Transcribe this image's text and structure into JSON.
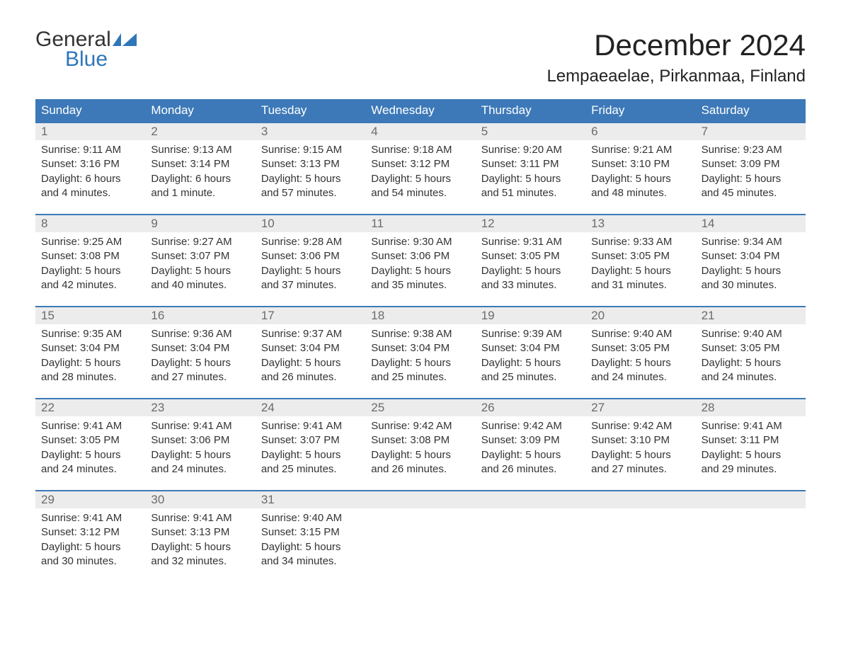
{
  "colors": {
    "header_bg": "#3d79b8",
    "header_text": "#ffffff",
    "daynum_bg": "#ececec",
    "daynum_text": "#6b6b6b",
    "body_text": "#333333",
    "week_border": "#3d79b8",
    "logo_blue": "#2f76b9",
    "page_bg": "#ffffff"
  },
  "typography": {
    "month_title_pt": 32,
    "location_pt": 18,
    "dow_pt": 13,
    "cell_pt": 11
  },
  "logo": {
    "text_top": "General",
    "text_bottom": "Blue"
  },
  "title": "December 2024",
  "location": "Lempaeaelae, Pirkanmaa, Finland",
  "dow": [
    "Sunday",
    "Monday",
    "Tuesday",
    "Wednesday",
    "Thursday",
    "Friday",
    "Saturday"
  ],
  "weeks": [
    {
      "nums": [
        "1",
        "2",
        "3",
        "4",
        "5",
        "6",
        "7"
      ],
      "cells": [
        {
          "l1": "Sunrise: 9:11 AM",
          "l2": "Sunset: 3:16 PM",
          "l3": "Daylight: 6 hours",
          "l4": "and 4 minutes."
        },
        {
          "l1": "Sunrise: 9:13 AM",
          "l2": "Sunset: 3:14 PM",
          "l3": "Daylight: 6 hours",
          "l4": "and 1 minute."
        },
        {
          "l1": "Sunrise: 9:15 AM",
          "l2": "Sunset: 3:13 PM",
          "l3": "Daylight: 5 hours",
          "l4": "and 57 minutes."
        },
        {
          "l1": "Sunrise: 9:18 AM",
          "l2": "Sunset: 3:12 PM",
          "l3": "Daylight: 5 hours",
          "l4": "and 54 minutes."
        },
        {
          "l1": "Sunrise: 9:20 AM",
          "l2": "Sunset: 3:11 PM",
          "l3": "Daylight: 5 hours",
          "l4": "and 51 minutes."
        },
        {
          "l1": "Sunrise: 9:21 AM",
          "l2": "Sunset: 3:10 PM",
          "l3": "Daylight: 5 hours",
          "l4": "and 48 minutes."
        },
        {
          "l1": "Sunrise: 9:23 AM",
          "l2": "Sunset: 3:09 PM",
          "l3": "Daylight: 5 hours",
          "l4": "and 45 minutes."
        }
      ]
    },
    {
      "nums": [
        "8",
        "9",
        "10",
        "11",
        "12",
        "13",
        "14"
      ],
      "cells": [
        {
          "l1": "Sunrise: 9:25 AM",
          "l2": "Sunset: 3:08 PM",
          "l3": "Daylight: 5 hours",
          "l4": "and 42 minutes."
        },
        {
          "l1": "Sunrise: 9:27 AM",
          "l2": "Sunset: 3:07 PM",
          "l3": "Daylight: 5 hours",
          "l4": "and 40 minutes."
        },
        {
          "l1": "Sunrise: 9:28 AM",
          "l2": "Sunset: 3:06 PM",
          "l3": "Daylight: 5 hours",
          "l4": "and 37 minutes."
        },
        {
          "l1": "Sunrise: 9:30 AM",
          "l2": "Sunset: 3:06 PM",
          "l3": "Daylight: 5 hours",
          "l4": "and 35 minutes."
        },
        {
          "l1": "Sunrise: 9:31 AM",
          "l2": "Sunset: 3:05 PM",
          "l3": "Daylight: 5 hours",
          "l4": "and 33 minutes."
        },
        {
          "l1": "Sunrise: 9:33 AM",
          "l2": "Sunset: 3:05 PM",
          "l3": "Daylight: 5 hours",
          "l4": "and 31 minutes."
        },
        {
          "l1": "Sunrise: 9:34 AM",
          "l2": "Sunset: 3:04 PM",
          "l3": "Daylight: 5 hours",
          "l4": "and 30 minutes."
        }
      ]
    },
    {
      "nums": [
        "15",
        "16",
        "17",
        "18",
        "19",
        "20",
        "21"
      ],
      "cells": [
        {
          "l1": "Sunrise: 9:35 AM",
          "l2": "Sunset: 3:04 PM",
          "l3": "Daylight: 5 hours",
          "l4": "and 28 minutes."
        },
        {
          "l1": "Sunrise: 9:36 AM",
          "l2": "Sunset: 3:04 PM",
          "l3": "Daylight: 5 hours",
          "l4": "and 27 minutes."
        },
        {
          "l1": "Sunrise: 9:37 AM",
          "l2": "Sunset: 3:04 PM",
          "l3": "Daylight: 5 hours",
          "l4": "and 26 minutes."
        },
        {
          "l1": "Sunrise: 9:38 AM",
          "l2": "Sunset: 3:04 PM",
          "l3": "Daylight: 5 hours",
          "l4": "and 25 minutes."
        },
        {
          "l1": "Sunrise: 9:39 AM",
          "l2": "Sunset: 3:04 PM",
          "l3": "Daylight: 5 hours",
          "l4": "and 25 minutes."
        },
        {
          "l1": "Sunrise: 9:40 AM",
          "l2": "Sunset: 3:05 PM",
          "l3": "Daylight: 5 hours",
          "l4": "and 24 minutes."
        },
        {
          "l1": "Sunrise: 9:40 AM",
          "l2": "Sunset: 3:05 PM",
          "l3": "Daylight: 5 hours",
          "l4": "and 24 minutes."
        }
      ]
    },
    {
      "nums": [
        "22",
        "23",
        "24",
        "25",
        "26",
        "27",
        "28"
      ],
      "cells": [
        {
          "l1": "Sunrise: 9:41 AM",
          "l2": "Sunset: 3:05 PM",
          "l3": "Daylight: 5 hours",
          "l4": "and 24 minutes."
        },
        {
          "l1": "Sunrise: 9:41 AM",
          "l2": "Sunset: 3:06 PM",
          "l3": "Daylight: 5 hours",
          "l4": "and 24 minutes."
        },
        {
          "l1": "Sunrise: 9:41 AM",
          "l2": "Sunset: 3:07 PM",
          "l3": "Daylight: 5 hours",
          "l4": "and 25 minutes."
        },
        {
          "l1": "Sunrise: 9:42 AM",
          "l2": "Sunset: 3:08 PM",
          "l3": "Daylight: 5 hours",
          "l4": "and 26 minutes."
        },
        {
          "l1": "Sunrise: 9:42 AM",
          "l2": "Sunset: 3:09 PM",
          "l3": "Daylight: 5 hours",
          "l4": "and 26 minutes."
        },
        {
          "l1": "Sunrise: 9:42 AM",
          "l2": "Sunset: 3:10 PM",
          "l3": "Daylight: 5 hours",
          "l4": "and 27 minutes."
        },
        {
          "l1": "Sunrise: 9:41 AM",
          "l2": "Sunset: 3:11 PM",
          "l3": "Daylight: 5 hours",
          "l4": "and 29 minutes."
        }
      ]
    },
    {
      "nums": [
        "29",
        "30",
        "31",
        "",
        "",
        "",
        ""
      ],
      "cells": [
        {
          "l1": "Sunrise: 9:41 AM",
          "l2": "Sunset: 3:12 PM",
          "l3": "Daylight: 5 hours",
          "l4": "and 30 minutes."
        },
        {
          "l1": "Sunrise: 9:41 AM",
          "l2": "Sunset: 3:13 PM",
          "l3": "Daylight: 5 hours",
          "l4": "and 32 minutes."
        },
        {
          "l1": "Sunrise: 9:40 AM",
          "l2": "Sunset: 3:15 PM",
          "l3": "Daylight: 5 hours",
          "l4": "and 34 minutes."
        },
        {
          "l1": "",
          "l2": "",
          "l3": "",
          "l4": ""
        },
        {
          "l1": "",
          "l2": "",
          "l3": "",
          "l4": ""
        },
        {
          "l1": "",
          "l2": "",
          "l3": "",
          "l4": ""
        },
        {
          "l1": "",
          "l2": "",
          "l3": "",
          "l4": ""
        }
      ]
    }
  ]
}
